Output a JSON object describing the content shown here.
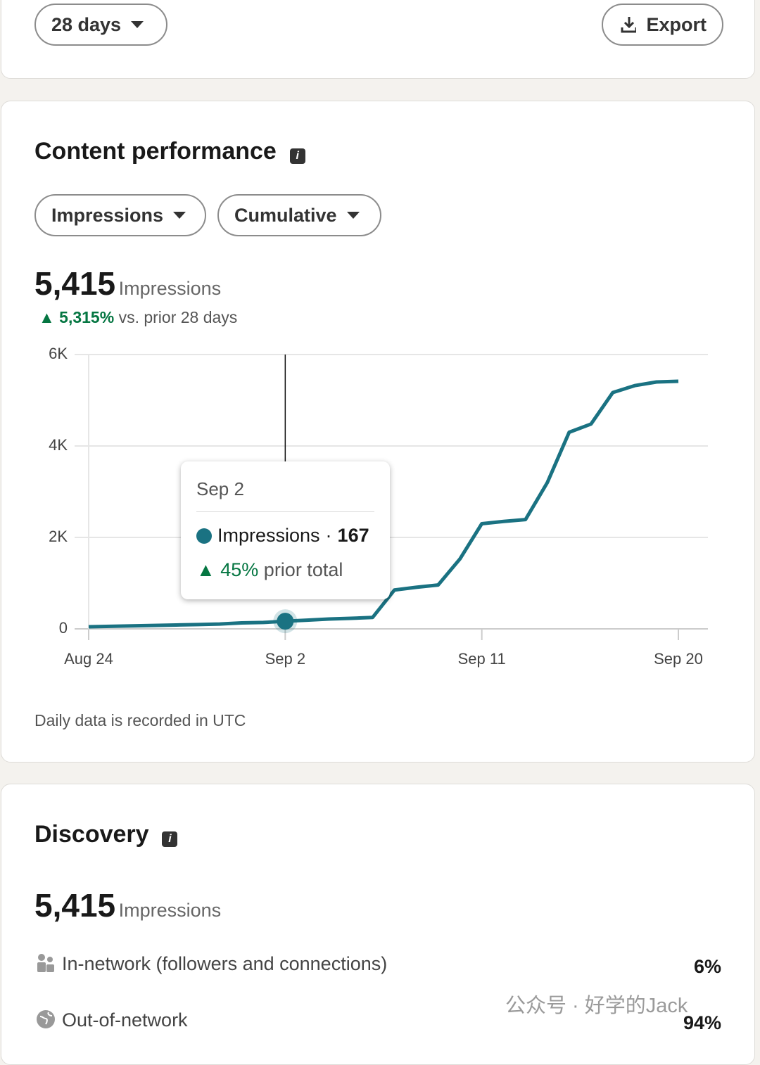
{
  "filters": {
    "range": "28 days",
    "export": "Export"
  },
  "performance": {
    "title": "Content performance",
    "metric": "Impressions",
    "mode": "Cumulative",
    "total": "5,415",
    "total_label": "Impressions",
    "change": "5,315%",
    "change_label": "vs. prior 28 days",
    "note": "Daily data is recorded in UTC"
  },
  "chart": {
    "type": "line",
    "series_name": "Impressions",
    "color": "#1a7282",
    "categories": [
      "Aug 24",
      null,
      null,
      null,
      null,
      null,
      null,
      null,
      null,
      "Sep 2",
      null,
      null,
      null,
      null,
      null,
      null,
      null,
      null,
      "Sep 11",
      null,
      null,
      null,
      null,
      null,
      null,
      null,
      null,
      "Sep 20"
    ],
    "values": [
      46,
      55,
      65,
      75,
      85,
      95,
      105,
      130,
      140,
      167,
      190,
      215,
      230,
      250,
      850,
      910,
      960,
      1530,
      2300,
      2350,
      2390,
      3200,
      4300,
      4480,
      5170,
      5320,
      5400,
      5415
    ],
    "ylim": [
      0,
      6000
    ],
    "yticks": [
      0,
      {
        "value": 2000,
        "label": "2K"
      },
      {
        "value": 4000,
        "label": "4K"
      },
      {
        "value": 6000,
        "label": "6K"
      }
    ],
    "grid": true
  },
  "tooltip": {
    "separator": "·",
    "change": "45%",
    "change_label": "prior total"
  },
  "discovery": {
    "title": "Discovery",
    "total": "5,415",
    "total_label": "Impressions",
    "rows": [
      {
        "label": "In-network (followers and connections)",
        "value": "6%"
      },
      {
        "label": "Out-of-network",
        "value": "94%"
      }
    ]
  },
  "watermark": "公众号 · 好学的Jack"
}
